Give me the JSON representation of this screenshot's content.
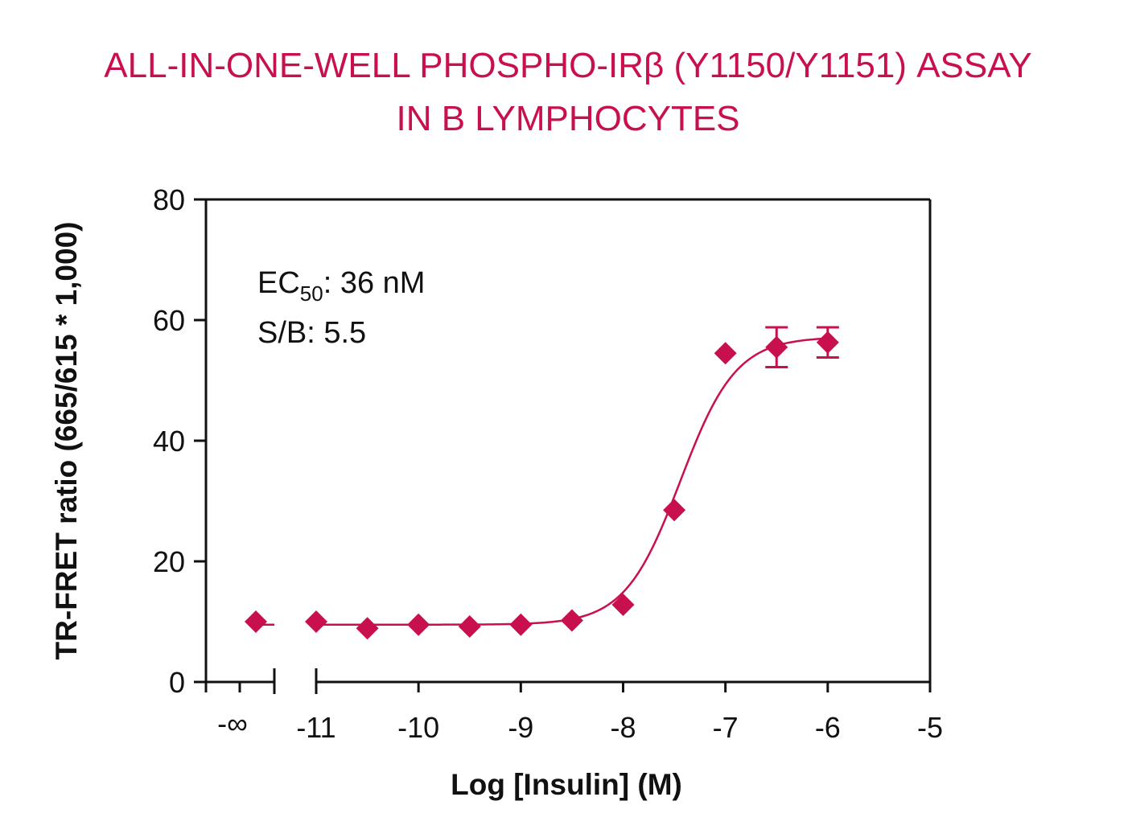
{
  "chart_data": {
    "type": "scatter",
    "title": "ALL-IN-ONE-WELL PHOSPHO-IRβ (Y1150/Y1151) ASSAY",
    "subtitle": "IN B LYMPHOCYTES",
    "xlabel": "Log [Insulin] (M)",
    "ylabel": "TR-FRET ratio  (665/615 * 1,000)",
    "xlim": [
      -11,
      -5
    ],
    "ylim": [
      0,
      80
    ],
    "x_ticks": [
      -11,
      -10,
      -9,
      -8,
      -7,
      -6,
      -5
    ],
    "x_tick_labels": [
      "-11",
      "-10",
      "-9",
      "-8",
      "-7",
      "-6",
      "-5"
    ],
    "y_ticks": [
      0,
      20,
      40,
      60,
      80
    ],
    "y_tick_labels": [
      "0",
      "20",
      "40",
      "60",
      "80"
    ],
    "broken_axis_label": "-∞",
    "baseline_point": {
      "x_label": "-∞",
      "y": 10.0
    },
    "points": [
      {
        "x": -11,
        "y": 10.0,
        "err": 0
      },
      {
        "x": -10.5,
        "y": 8.9,
        "err": 0
      },
      {
        "x": -10,
        "y": 9.5,
        "err": 0
      },
      {
        "x": -9.5,
        "y": 9.2,
        "err": 0
      },
      {
        "x": -9,
        "y": 9.5,
        "err": 0
      },
      {
        "x": -8.5,
        "y": 10.2,
        "err": 0
      },
      {
        "x": -8,
        "y": 12.8,
        "err": 0
      },
      {
        "x": -7.5,
        "y": 28.5,
        "err": 0
      },
      {
        "x": -7,
        "y": 54.5,
        "err": 0
      },
      {
        "x": -6.5,
        "y": 55.5,
        "err": 3.3
      },
      {
        "x": -6,
        "y": 56.3,
        "err": 2.5
      }
    ],
    "fit": {
      "model": "4PL",
      "bottom": 9.5,
      "top": 57.2,
      "logEC50": -7.44,
      "hill": 1.6
    },
    "annotations": {
      "ec50_prefix": "EC",
      "ec50_subscript": "50",
      "ec50_value": ": 36 nM",
      "sb": "S/B: 5.5"
    },
    "grid": false,
    "legend": "none",
    "colors": {
      "series": "#c8104e",
      "title": "#c8104e",
      "axis": "#111111"
    }
  }
}
